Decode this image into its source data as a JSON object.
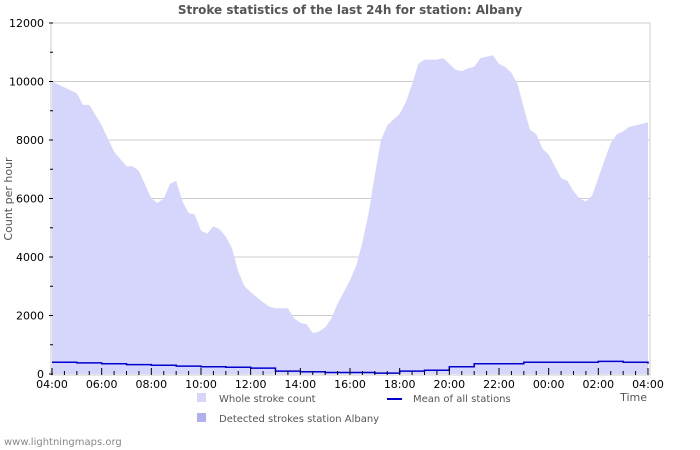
{
  "title": "Stroke statistics of the last 24h for station: Albany",
  "y_axis_title": "Count per hour",
  "x_axis_title": "Time",
  "watermark": "www.lightningmaps.org",
  "colors": {
    "whole_fill": "#d6d6fc",
    "detected_fill": "#b0b0f0",
    "mean_line": "#0000cc",
    "grid": "#cccccc",
    "frame": "#cccccc"
  },
  "legend": [
    {
      "label": "Whole stroke count",
      "type": "fill",
      "color": "#d6d6fc"
    },
    {
      "label": "Detected strokes station Albany",
      "type": "fill",
      "color": "#b0b0f0"
    },
    {
      "label": "Mean of all stations",
      "type": "line",
      "color": "#0000cc"
    }
  ],
  "chart_data": {
    "type": "area",
    "title": "Stroke statistics of the last 24h for station: Albany",
    "xlabel": "Time",
    "ylabel": "Count per hour",
    "ylim": [
      0,
      12000
    ],
    "yticks": [
      0,
      2000,
      4000,
      6000,
      8000,
      10000,
      12000
    ],
    "xticks": [
      "04:00",
      "06:00",
      "08:00",
      "10:00",
      "12:00",
      "14:00",
      "16:00",
      "18:00",
      "20:00",
      "22:00",
      "00:00",
      "02:00",
      "04:00"
    ],
    "grid": true,
    "legend_position": "bottom",
    "x_hours_from_start": [
      0,
      0.5,
      1,
      1.25,
      1.5,
      2,
      2.5,
      3,
      3.25,
      3.5,
      4,
      4.25,
      4.5,
      4.75,
      5,
      5.25,
      5.5,
      5.75,
      6,
      6.25,
      6.5,
      6.75,
      7,
      7.25,
      7.5,
      7.75,
      8,
      8.5,
      8.75,
      9,
      9.5,
      9.75,
      10,
      10.25,
      10.5,
      10.75,
      11,
      11.25,
      11.5,
      12,
      12.25,
      12.5,
      12.75,
      13,
      13.25,
      13.5,
      14,
      14.25,
      14.5,
      14.75,
      15,
      15.5,
      15.75,
      16,
      16.25,
      16.5,
      16.75,
      17,
      17.25,
      17.5,
      17.75,
      18,
      18.25,
      18.5,
      18.75,
      19,
      19.25,
      19.5,
      19.75,
      20,
      20.25,
      20.5,
      20.75,
      21,
      21.25,
      21.5,
      21.75,
      22,
      22.25,
      22.5,
      22.75,
      23,
      23.25,
      23.5,
      23.75,
      24
    ],
    "series": [
      {
        "name": "Whole stroke count",
        "values": [
          10000,
          9800,
          9600,
          9200,
          9200,
          8500,
          7600,
          7100,
          7100,
          6950,
          6000,
          5850,
          6000,
          6500,
          6600,
          5900,
          5500,
          5450,
          4900,
          4800,
          5050,
          4950,
          4700,
          4300,
          3500,
          3000,
          2800,
          2450,
          2300,
          2250,
          2250,
          1900,
          1750,
          1700,
          1400,
          1450,
          1600,
          1900,
          2400,
          3200,
          3700,
          4500,
          5500,
          6800,
          8000,
          8500,
          8900,
          9300,
          9900,
          10600,
          10750,
          10750,
          10800,
          10600,
          10400,
          10350,
          10450,
          10500,
          10800,
          10850,
          10900,
          10600,
          10500,
          10300,
          9900,
          9100,
          8350,
          8200,
          7700,
          7500,
          7100,
          6700,
          6600,
          6250,
          6000,
          5900,
          6100,
          6700,
          7300,
          7900,
          8200,
          8300,
          8450,
          8500,
          8550,
          8600
        ]
      },
      {
        "name": "Detected strokes station Albany",
        "values": []
      },
      {
        "name": "Mean of all stations",
        "step_hours": [
          0,
          1,
          2,
          3,
          4,
          5,
          6,
          7,
          8,
          9,
          10,
          11,
          12,
          13,
          14,
          15,
          16,
          17,
          18,
          19,
          20,
          21,
          22,
          23,
          24
        ],
        "values": [
          400,
          380,
          350,
          320,
          300,
          270,
          250,
          230,
          200,
          100,
          80,
          50,
          50,
          30,
          100,
          130,
          250,
          350,
          350,
          400,
          400,
          400,
          430,
          400,
          350
        ]
      }
    ]
  }
}
